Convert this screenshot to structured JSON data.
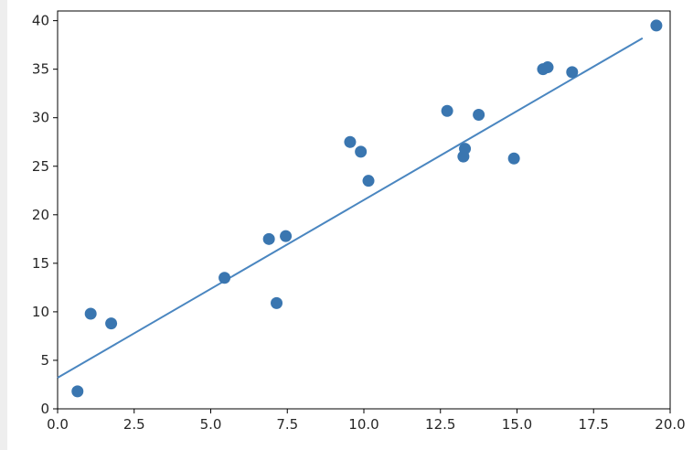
{
  "chart_data": {
    "type": "scatter",
    "title": "",
    "xlabel": "",
    "ylabel": "",
    "xlim": [
      0,
      20
    ],
    "ylim": [
      0,
      41
    ],
    "grid": false,
    "xticks": [
      0,
      2.5,
      5,
      7.5,
      10,
      12.5,
      15,
      17.5,
      20
    ],
    "xtick_labels": [
      "0.0",
      "2.5",
      "5.0",
      "7.5",
      "10.0",
      "12.5",
      "15.0",
      "17.5",
      "20.0"
    ],
    "yticks": [
      0,
      5,
      10,
      15,
      20,
      25,
      30,
      35,
      40
    ],
    "ytick_labels": [
      "0",
      "5",
      "10",
      "15",
      "20",
      "25",
      "30",
      "35",
      "40"
    ],
    "series": [
      {
        "type": "scatter",
        "color": "#3a76b0",
        "points": [
          {
            "x": 0.65,
            "y": 1.8
          },
          {
            "x": 1.08,
            "y": 9.8
          },
          {
            "x": 1.75,
            "y": 8.8
          },
          {
            "x": 5.45,
            "y": 13.5
          },
          {
            "x": 6.9,
            "y": 17.5
          },
          {
            "x": 7.15,
            "y": 10.9
          },
          {
            "x": 7.45,
            "y": 17.8
          },
          {
            "x": 9.55,
            "y": 27.5
          },
          {
            "x": 9.9,
            "y": 26.5
          },
          {
            "x": 10.15,
            "y": 23.5
          },
          {
            "x": 12.72,
            "y": 30.7
          },
          {
            "x": 13.25,
            "y": 26.0
          },
          {
            "x": 13.3,
            "y": 26.8
          },
          {
            "x": 13.75,
            "y": 30.3
          },
          {
            "x": 14.9,
            "y": 25.8
          },
          {
            "x": 15.85,
            "y": 35.0
          },
          {
            "x": 16.0,
            "y": 35.2
          },
          {
            "x": 16.8,
            "y": 34.7
          },
          {
            "x": 19.55,
            "y": 39.5
          }
        ]
      },
      {
        "type": "line",
        "color": "#4a86c0",
        "points": [
          {
            "x": 0.0,
            "y": 3.2
          },
          {
            "x": 19.1,
            "y": 38.2
          }
        ]
      }
    ]
  }
}
